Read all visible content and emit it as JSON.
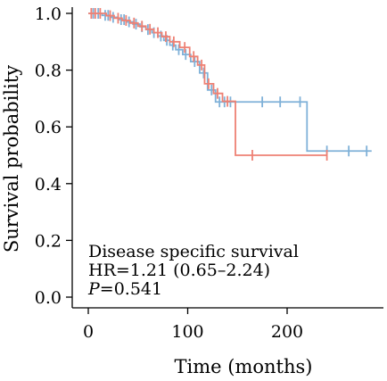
{
  "chart_data": {
    "type": "line",
    "subtype": "kaplan-meier",
    "xlabel": "Time (months)",
    "ylabel": "Survival probability",
    "xlim": [
      -8,
      300
    ],
    "ylim": [
      0,
      1.0
    ],
    "xticks": [
      0,
      100,
      200
    ],
    "yticks": [
      0.0,
      0.2,
      0.4,
      0.6,
      0.8,
      1.0
    ],
    "ytick_labels": [
      "0.0",
      "0.2",
      "0.4",
      "0.6",
      "0.8",
      "1.0"
    ],
    "grid": false,
    "legend": "none",
    "series": [
      {
        "color": "#7fb1d8",
        "steps": [
          [
            0,
            1.0
          ],
          [
            14,
            0.993
          ],
          [
            22,
            0.986
          ],
          [
            30,
            0.978
          ],
          [
            38,
            0.97
          ],
          [
            45,
            0.962
          ],
          [
            52,
            0.953
          ],
          [
            58,
            0.943
          ],
          [
            64,
            0.932
          ],
          [
            70,
            0.92
          ],
          [
            76,
            0.905
          ],
          [
            82,
            0.888
          ],
          [
            88,
            0.872
          ],
          [
            95,
            0.855
          ],
          [
            103,
            0.83
          ],
          [
            112,
            0.79
          ],
          [
            120,
            0.73
          ],
          [
            128,
            0.688
          ],
          [
            220,
            0.515
          ],
          [
            285,
            0.515
          ]
        ],
        "censors": [
          [
            5,
            1.0
          ],
          [
            10,
            1.0
          ],
          [
            17,
            0.993
          ],
          [
            20,
            0.993
          ],
          [
            25,
            0.986
          ],
          [
            33,
            0.978
          ],
          [
            36,
            0.978
          ],
          [
            41,
            0.97
          ],
          [
            48,
            0.962
          ],
          [
            54,
            0.953
          ],
          [
            60,
            0.943
          ],
          [
            66,
            0.932
          ],
          [
            73,
            0.92
          ],
          [
            79,
            0.905
          ],
          [
            85,
            0.888
          ],
          [
            91,
            0.872
          ],
          [
            98,
            0.855
          ],
          [
            107,
            0.83
          ],
          [
            116,
            0.79
          ],
          [
            124,
            0.73
          ],
          [
            132,
            0.688
          ],
          [
            137,
            0.688
          ],
          [
            143,
            0.688
          ],
          [
            175,
            0.688
          ],
          [
            193,
            0.688
          ],
          [
            213,
            0.688
          ],
          [
            240,
            0.515
          ],
          [
            262,
            0.515
          ],
          [
            280,
            0.515
          ]
        ]
      },
      {
        "color": "#ee8174",
        "steps": [
          [
            0,
            1.0
          ],
          [
            18,
            0.992
          ],
          [
            26,
            0.983
          ],
          [
            34,
            0.975
          ],
          [
            42,
            0.966
          ],
          [
            50,
            0.955
          ],
          [
            58,
            0.944
          ],
          [
            66,
            0.932
          ],
          [
            74,
            0.918
          ],
          [
            82,
            0.9
          ],
          [
            92,
            0.88
          ],
          [
            102,
            0.848
          ],
          [
            110,
            0.818
          ],
          [
            117,
            0.752
          ],
          [
            126,
            0.718
          ],
          [
            135,
            0.69
          ],
          [
            148,
            0.5
          ],
          [
            240,
            0.5
          ]
        ],
        "censors": [
          [
            3,
            1.0
          ],
          [
            7,
            1.0
          ],
          [
            12,
            1.0
          ],
          [
            22,
            0.992
          ],
          [
            30,
            0.983
          ],
          [
            38,
            0.975
          ],
          [
            46,
            0.966
          ],
          [
            54,
            0.955
          ],
          [
            62,
            0.944
          ],
          [
            70,
            0.932
          ],
          [
            78,
            0.918
          ],
          [
            86,
            0.9
          ],
          [
            97,
            0.88
          ],
          [
            106,
            0.848
          ],
          [
            114,
            0.818
          ],
          [
            121,
            0.752
          ],
          [
            130,
            0.718
          ],
          [
            140,
            0.69
          ],
          [
            165,
            0.5
          ],
          [
            240,
            0.5
          ]
        ]
      }
    ],
    "annotations": {
      "line1": "Disease specific survival",
      "line2": "HR=1.21 (0.65–2.24)",
      "p_label": "P",
      "p_value": "=0.541"
    }
  }
}
